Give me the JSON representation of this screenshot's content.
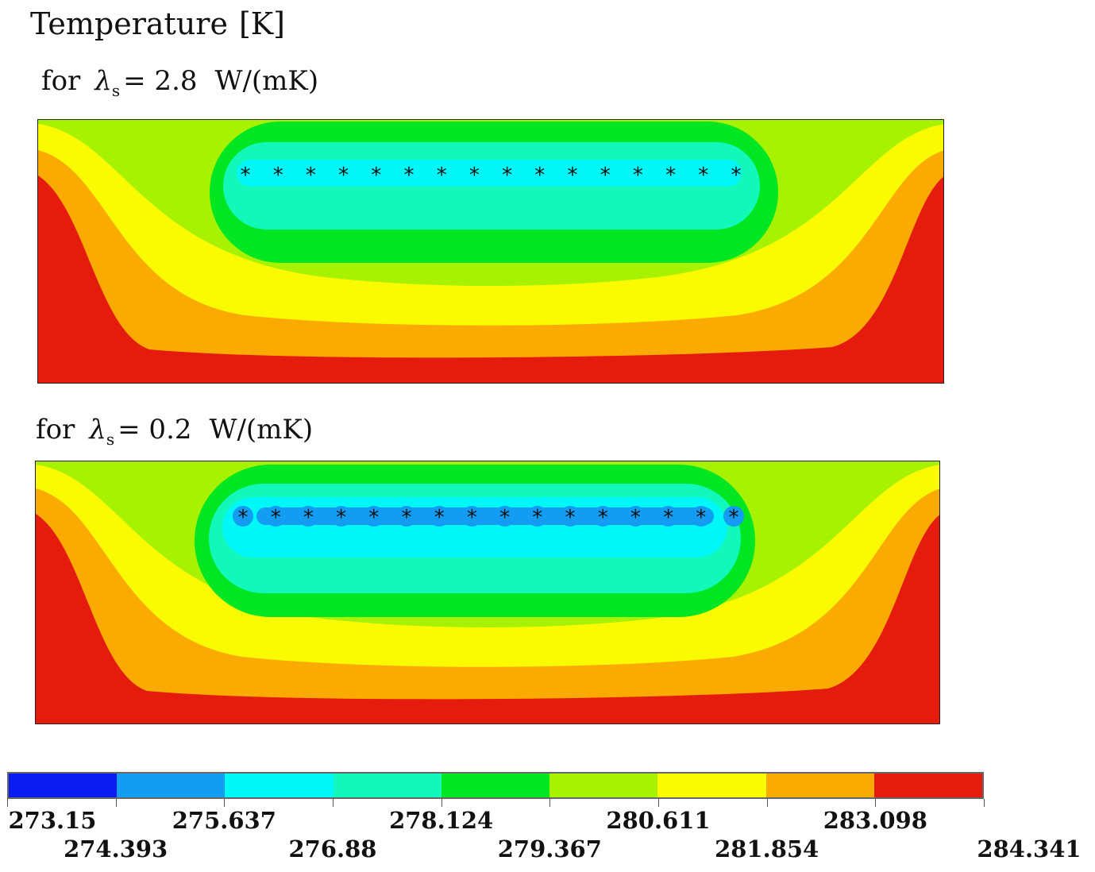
{
  "title": {
    "text": "Temperature",
    "unit": "[K]"
  },
  "panels": [
    {
      "prefix": "for",
      "symbol": "λ",
      "subscript": "s",
      "equals": "= 2.8",
      "unit": "W/(mK)",
      "probe_marker": "*"
    },
    {
      "prefix": "for",
      "symbol": "λ",
      "subscript": "s",
      "equals": "= 0.2",
      "unit": "W/(mK)",
      "probe_marker": "*"
    }
  ],
  "chart_data": {
    "type": "heatmap",
    "title": "Temperature [K]",
    "subplots": [
      {
        "label": "for λs = 2.8 W/(mK)",
        "conductivity_W_per_mK": 2.8,
        "probe_count": 16,
        "coldest_band": "275.637–276.88"
      },
      {
        "label": "for λs = 0.2 W/(mK)",
        "conductivity_W_per_mK": 0.2,
        "probe_count": 16,
        "coldest_band": "274.393–275.637"
      }
    ],
    "colorbar": {
      "min": 273.15,
      "max": 284.341,
      "tick_labels": [
        "273.15",
        "274.393",
        "275.637",
        "276.88",
        "278.124",
        "279.367",
        "280.611",
        "281.854",
        "283.098",
        "284.341"
      ],
      "colors": [
        "#0a1cf0",
        "#139cf2",
        "#00f7f7",
        "#12f7ba",
        "#00e623",
        "#a6f200",
        "#fafa00",
        "#fbaa00",
        "#e51b0e"
      ]
    }
  }
}
